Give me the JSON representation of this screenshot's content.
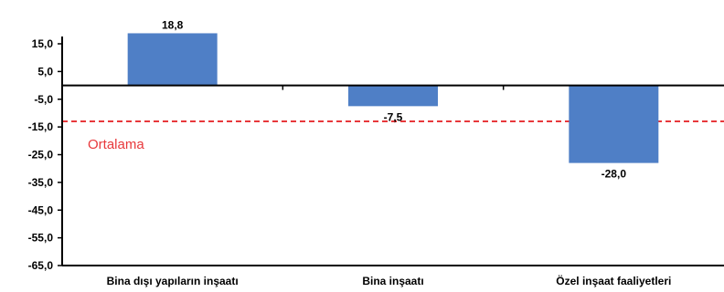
{
  "chart_data": {
    "type": "bar",
    "categories": [
      "Bina dışı yapıların inşaatı",
      "Bina inşaatı",
      "Özel inşaat faaliyetleri"
    ],
    "values": [
      18.8,
      -7.5,
      -28.0
    ],
    "value_labels": [
      "18,8",
      "-7,5",
      "-28,0"
    ],
    "y_ticks": [
      15,
      5,
      -5,
      -15,
      -25,
      -35,
      -45,
      -55,
      -65
    ],
    "y_tick_labels": [
      "15,0",
      "5,0",
      "-5,0",
      "-15,0",
      "-25,0",
      "-35,0",
      "-45,0",
      "-55,0",
      "-65,0"
    ],
    "ylim": [
      -65,
      20
    ],
    "reference_line": {
      "label": "Ortalama",
      "value": -13.0,
      "color": "#e8383b",
      "style": "dashed"
    },
    "bar_color": "#4f7fc6",
    "grid": false,
    "title": "",
    "xlabel": "",
    "ylabel": ""
  }
}
